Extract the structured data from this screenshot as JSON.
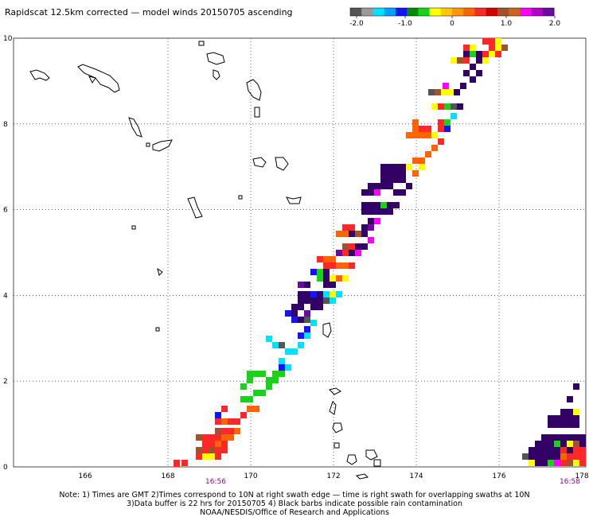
{
  "title": "Rapidscat 12.5km corrected — model winds 20150705 ascending",
  "colorbar": {
    "colors": [
      "#555555",
      "#9a9a9a",
      "#00e0ff",
      "#00a0ff",
      "#1414ff",
      "#008c00",
      "#19d219",
      "#ffff00",
      "#ffc800",
      "#ff9600",
      "#ff6400",
      "#ff2828",
      "#d20000",
      "#a0522d",
      "#c86420",
      "#ff00ff",
      "#b400c8",
      "#6a0aa0"
    ],
    "labels": [
      "-2.0",
      "-1.0",
      "0",
      "1.0",
      "2.0"
    ]
  },
  "map": {
    "x_range": [
      164.8,
      177.5
    ],
    "y_range": [
      0,
      10
    ],
    "x_ticks": [
      "166",
      "168",
      "170",
      "172",
      "174",
      "176",
      "178"
    ],
    "y_ticks": [
      "0",
      "2",
      "4",
      "6",
      "8",
      "10"
    ],
    "swath_times": [
      "16:56",
      "16:58"
    ],
    "legend_colors": {
      "dark_purple": "#330066",
      "purple": "#6a0aa0",
      "magenta": "#ff00ff",
      "brown": "#a0522d",
      "red": "#ff2828",
      "orange": "#ff6400",
      "yellow": "#ffff00",
      "green": "#19d219",
      "blue": "#1414ff",
      "cyan": "#00e0ff",
      "grey": "#555555"
    }
  },
  "notes": {
    "line1": "Note: 1) Times are GMT 2)Times correspond to 10N at right swath edge — time is right swath for overlapping swaths at 10N",
    "line2": "3)Data buffer is 22 hrs for 20150705 4) Black barbs indicate possible rain contamination",
    "line3": "NOAA/NESDIS/Office of Research and Applications"
  }
}
